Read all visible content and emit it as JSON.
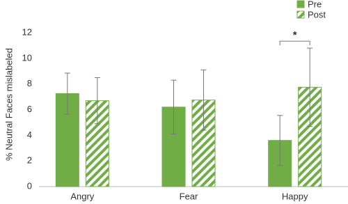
{
  "chart_data": {
    "type": "bar",
    "y_label": "% Neutral Faces mislabeled",
    "categories": [
      "Angry",
      "Fear",
      "Happy"
    ],
    "series": [
      {
        "name": "Pre",
        "color": "#70ad47",
        "pattern": "solid",
        "values": [
          7.25,
          6.2,
          3.6
        ],
        "errors": [
          1.6,
          2.1,
          1.95
        ]
      },
      {
        "name": "Post",
        "color": "#70ad47",
        "pattern": "hatched",
        "values": [
          6.7,
          6.75,
          7.75
        ],
        "errors": [
          1.8,
          2.35,
          3.05
        ]
      }
    ],
    "ylim": [
      0,
      12
    ],
    "yticks": [
      0,
      2,
      4,
      6,
      8,
      10,
      12
    ],
    "grid": false,
    "legend": "top-right",
    "annotation": "*"
  }
}
